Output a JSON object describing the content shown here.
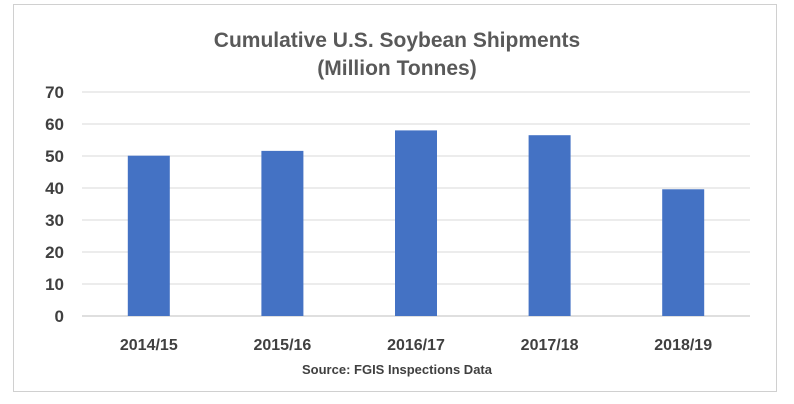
{
  "chart_data": {
    "type": "bar",
    "title_line1": "Cumulative U.S. Soybean Shipments",
    "title_line2": "(Million Tonnes)",
    "categories": [
      "2014/15",
      "2015/16",
      "2016/17",
      "2017/18",
      "2018/19"
    ],
    "values": [
      50.1,
      51.6,
      58.0,
      56.5,
      39.6
    ],
    "ylim": [
      0,
      70
    ],
    "yticks": [
      0,
      10,
      20,
      30,
      40,
      50,
      60,
      70
    ],
    "grid": true,
    "bar_color": "#4472C4",
    "source": "Source: FGIS Inspections Data"
  }
}
